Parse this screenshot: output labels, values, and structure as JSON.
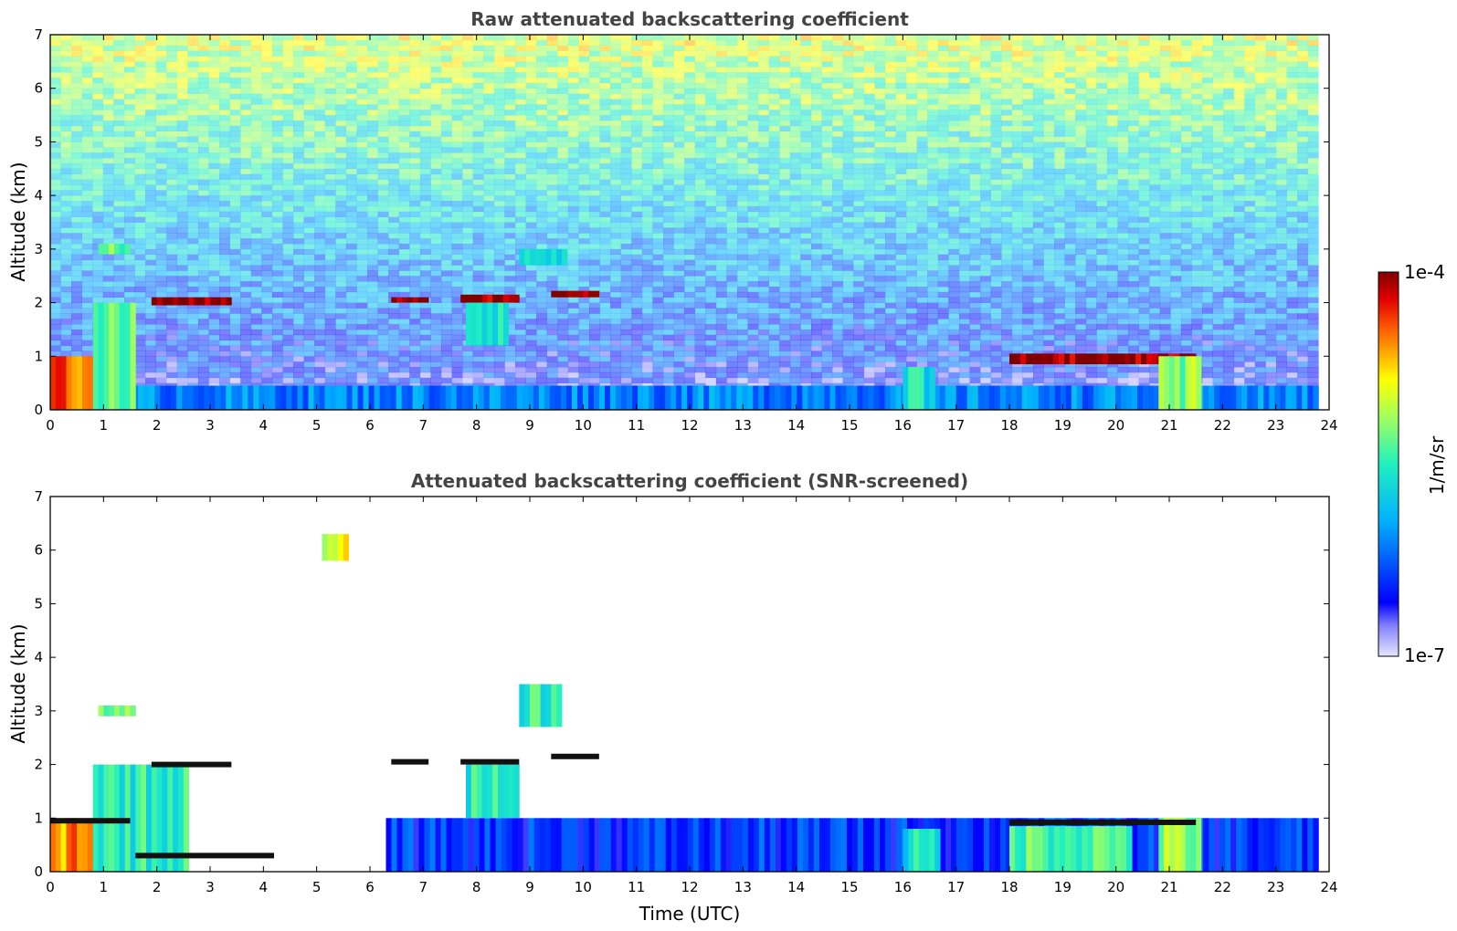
{
  "chart_data": [
    {
      "type": "heatmap",
      "title": "Raw attenuated backscattering coefficient",
      "xlabel": "",
      "ylabel": "Altitude (km)",
      "xlim": [
        0,
        24
      ],
      "ylim": [
        0,
        7
      ],
      "x_ticks": [
        0,
        1,
        2,
        3,
        4,
        5,
        6,
        7,
        8,
        9,
        10,
        11,
        12,
        13,
        14,
        15,
        16,
        17,
        18,
        19,
        20,
        21,
        22,
        23,
        24
      ],
      "y_ticks": [
        0,
        1,
        2,
        3,
        4,
        5,
        6,
        7
      ],
      "layers": [
        {
          "name": "boundary layer",
          "x": [
            0,
            23.8
          ],
          "y": [
            0,
            0.45
          ],
          "level": 0.3
        },
        {
          "name": "low cloud deck",
          "x": [
            0,
            1.5
          ],
          "y": [
            0,
            1.0
          ],
          "level": 0.85
        },
        {
          "name": "aerosol column",
          "x": [
            0.8,
            1.6
          ],
          "y": [
            0,
            2.0
          ],
          "level": 0.55
        },
        {
          "name": "cloud layer ~2 km",
          "x": [
            1.9,
            3.4
          ],
          "y": [
            1.95,
            2.1
          ],
          "level": 1.0
        },
        {
          "name": "cloud layer ~2 km",
          "x": [
            6.4,
            7.1
          ],
          "y": [
            2.0,
            2.1
          ],
          "level": 1.0
        },
        {
          "name": "cloud layer ~2 km",
          "x": [
            7.7,
            8.8
          ],
          "y": [
            2.0,
            2.15
          ],
          "level": 1.0
        },
        {
          "name": "cloud layer ~2.2 km",
          "x": [
            9.4,
            10.3
          ],
          "y": [
            2.1,
            2.22
          ],
          "level": 1.0
        },
        {
          "name": "aerosol plume",
          "x": [
            7.8,
            8.6
          ],
          "y": [
            1.2,
            2.0
          ],
          "level": 0.5
        },
        {
          "name": "elevated layer ~3 km",
          "x": [
            0.9,
            1.5
          ],
          "y": [
            2.9,
            3.1
          ],
          "level": 0.55
        },
        {
          "name": "elevated layer ~2.8 km",
          "x": [
            8.8,
            9.7
          ],
          "y": [
            2.7,
            3.0
          ],
          "level": 0.45
        },
        {
          "name": "cloud base ~0.9 km",
          "x": [
            18,
            21.5
          ],
          "y": [
            0.85,
            1.05
          ],
          "level": 1.0
        },
        {
          "name": "precipitation streaks",
          "x": [
            20.8,
            21.6
          ],
          "y": [
            0,
            1.0
          ],
          "level": 0.6
        },
        {
          "name": "aerosol 16-17 h",
          "x": [
            16,
            16.6
          ],
          "y": [
            0,
            0.8
          ],
          "level": 0.45
        }
      ],
      "background": "noise (raw, increasing with altitude)"
    },
    {
      "type": "heatmap",
      "title": "Attenuated backscattering coefficient (SNR-screened)",
      "xlabel": "Time (UTC)",
      "ylabel": "Altitude (km)",
      "xlim": [
        0,
        24
      ],
      "ylim": [
        0,
        7
      ],
      "x_ticks": [
        0,
        1,
        2,
        3,
        4,
        5,
        6,
        7,
        8,
        9,
        10,
        11,
        12,
        13,
        14,
        15,
        16,
        17,
        18,
        19,
        20,
        21,
        22,
        23,
        24
      ],
      "y_ticks": [
        0,
        1,
        2,
        3,
        4,
        5,
        6,
        7
      ],
      "layers": [
        {
          "name": "boundary layer",
          "x": [
            6.3,
            23.8
          ],
          "y": [
            0,
            1.0
          ],
          "level": 0.2
        },
        {
          "name": "low cloud deck",
          "x": [
            0,
            1.5
          ],
          "y": [
            0,
            1.0
          ],
          "level": 0.8
        },
        {
          "name": "aerosol column",
          "x": [
            0.8,
            2.6
          ],
          "y": [
            0,
            2.0
          ],
          "level": 0.5
        },
        {
          "name": "elevated plume",
          "x": [
            5.1,
            5.6
          ],
          "y": [
            5.8,
            6.3
          ],
          "level": 0.7
        },
        {
          "name": "elevated layer ~3 km",
          "x": [
            0.9,
            1.6
          ],
          "y": [
            2.9,
            3.1
          ],
          "level": 0.55
        },
        {
          "name": "elevated layer ~2.8 km",
          "x": [
            8.8,
            9.6
          ],
          "y": [
            2.7,
            3.5
          ],
          "level": 0.5
        },
        {
          "name": "aerosol plume",
          "x": [
            7.8,
            8.8
          ],
          "y": [
            1.0,
            2.0
          ],
          "level": 0.5
        },
        {
          "name": "aerosol 16-17 h",
          "x": [
            16,
            16.7
          ],
          "y": [
            0,
            0.8
          ],
          "level": 0.45
        },
        {
          "name": "aerosol 18-20 h",
          "x": [
            18,
            20.3
          ],
          "y": [
            0,
            0.85
          ],
          "level": 0.55
        },
        {
          "name": "precipitation streaks",
          "x": [
            20.8,
            21.6
          ],
          "y": [
            0,
            1.0
          ],
          "level": 0.6
        }
      ],
      "black_cloud_tops": [
        {
          "x": [
            0,
            1.5
          ],
          "y": 0.95
        },
        {
          "x": [
            1.9,
            3.4
          ],
          "y": 2.0
        },
        {
          "x": [
            6.4,
            7.1
          ],
          "y": 2.05
        },
        {
          "x": [
            7.7,
            8.8
          ],
          "y": 2.05
        },
        {
          "x": [
            9.4,
            10.3
          ],
          "y": 2.15
        },
        {
          "x": [
            1.6,
            4.2
          ],
          "y": 0.3
        },
        {
          "x": [
            18,
            21.5
          ],
          "y": 0.92
        }
      ]
    }
  ],
  "colorbar": {
    "label": "1/m/sr",
    "max_label": "1e-4",
    "min_label": "1e-7",
    "scale": "log",
    "range": [
      1e-07,
      0.0001
    ],
    "colormap": "jet"
  }
}
